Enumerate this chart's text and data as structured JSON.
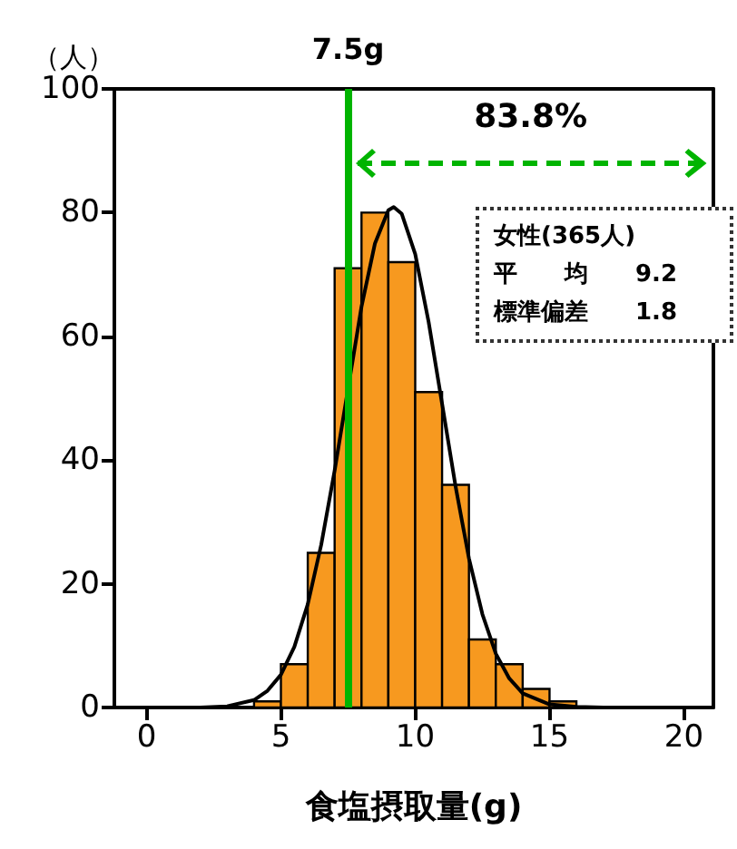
{
  "chart_data": {
    "type": "histogram",
    "xlabel": "食塩摂取量(g)",
    "ylabel": "（人）",
    "bins": [
      4,
      5,
      6,
      7,
      8,
      9,
      10,
      11,
      12,
      13,
      14,
      15,
      16
    ],
    "values": [
      1,
      7,
      25,
      71,
      80,
      72,
      51,
      36,
      11,
      7,
      3,
      1
    ],
    "color": "#f7991f",
    "series": [
      {
        "type": "line",
        "color": "#000000",
        "x": [
          0,
          1,
          2,
          3,
          4,
          4.5,
          5,
          5.5,
          6,
          6.5,
          7,
          8,
          8.5,
          9,
          9.2,
          9.5,
          10,
          10.5,
          11,
          11.5,
          12,
          12.5,
          13,
          13.5,
          14,
          15,
          16,
          17,
          18,
          20
        ],
        "values": [
          0,
          0,
          0,
          0.2,
          1.2,
          2.7,
          5.3,
          9.8,
          16.7,
          26.3,
          38.3,
          64.8,
          75,
          80.4,
          80.9,
          79.8,
          73.3,
          62.3,
          49.1,
          35.8,
          24.1,
          15.1,
          8.7,
          4.7,
          2.3,
          0.5,
          0.1,
          0,
          0,
          0
        ]
      }
    ],
    "xlim": [
      -1.2,
      21.1
    ],
    "ylim": [
      0,
      100
    ],
    "xticks": [
      0,
      5,
      10,
      15,
      20
    ],
    "yticks": [
      0,
      20,
      40,
      60,
      80,
      100
    ],
    "grid": false,
    "marker": "none",
    "ref_lines": [
      {
        "axis": "x",
        "value": 7.5,
        "label": "7.5g",
        "color": "#00b400"
      }
    ],
    "annotations": [
      "83.8%",
      "女性(365人)",
      "平　　均　　9.2",
      "標準偏差　　1.8"
    ]
  }
}
